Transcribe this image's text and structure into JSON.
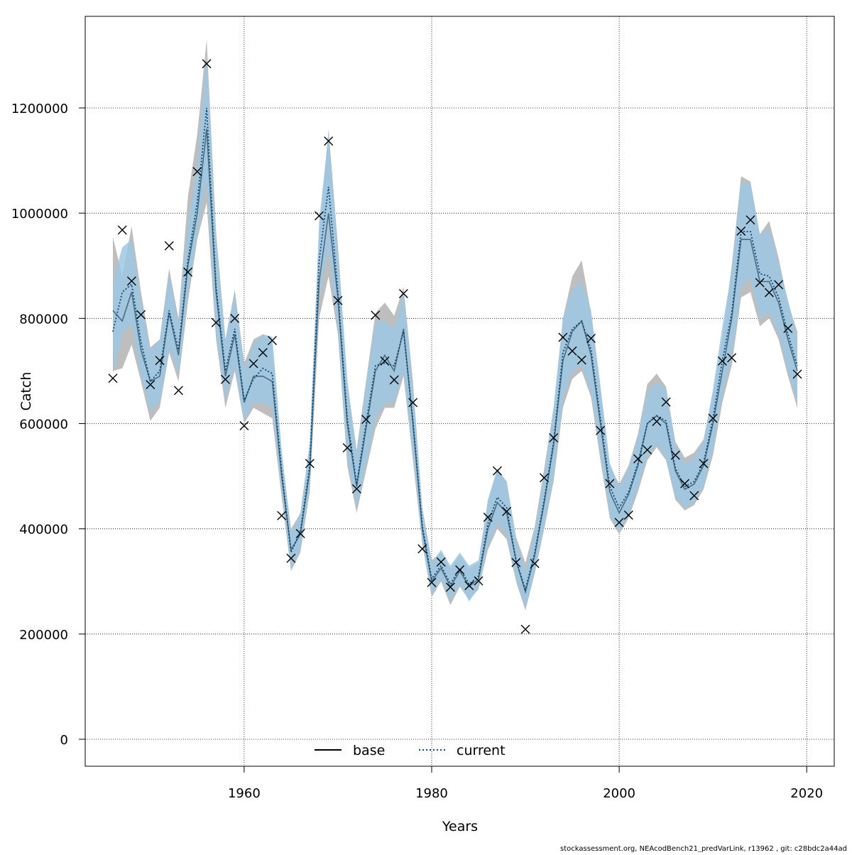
{
  "chart_data": {
    "type": "line",
    "xlabel": "Years",
    "ylabel": "Catch",
    "xlim": [
      1946,
      2019
    ],
    "ylim": [
      0,
      1300000
    ],
    "x_ticks": [
      1960,
      1980,
      2000,
      2020
    ],
    "y_ticks": [
      0,
      200000,
      400000,
      600000,
      800000,
      1000000,
      1200000
    ],
    "grid": true,
    "legend_position": "bottom-center",
    "colors": {
      "base_band": "#bebebe",
      "current_band": "#9ec8e4",
      "base_line": "#000000",
      "current_line": "#0b4a7a",
      "observed": "#000000"
    },
    "years": [
      1946,
      1947,
      1948,
      1949,
      1950,
      1951,
      1952,
      1953,
      1954,
      1955,
      1956,
      1957,
      1958,
      1959,
      1960,
      1961,
      1962,
      1963,
      1964,
      1965,
      1966,
      1967,
      1968,
      1969,
      1970,
      1971,
      1972,
      1973,
      1974,
      1975,
      1976,
      1977,
      1978,
      1979,
      1980,
      1981,
      1982,
      1983,
      1984,
      1985,
      1986,
      1987,
      1988,
      1989,
      1990,
      1991,
      1992,
      1993,
      1994,
      1995,
      1996,
      1997,
      1998,
      1999,
      2000,
      2001,
      2002,
      2003,
      2004,
      2005,
      2006,
      2007,
      2008,
      2009,
      2010,
      2011,
      2012,
      2013,
      2014,
      2015,
      2016,
      2017,
      2018,
      2019
    ],
    "series": [
      {
        "name": "base",
        "style": "solid",
        "values": [
          815000,
          795000,
          850000,
          740000,
          680000,
          690000,
          810000,
          730000,
          900000,
          1000000,
          1160000,
          850000,
          690000,
          770000,
          640000,
          690000,
          690000,
          680000,
          500000,
          360000,
          390000,
          510000,
          870000,
          1000000,
          840000,
          600000,
          480000,
          590000,
          700000,
          730000,
          700000,
          780000,
          600000,
          400000,
          300000,
          325000,
          290000,
          320000,
          290000,
          305000,
          400000,
          450000,
          430000,
          340000,
          280000,
          350000,
          450000,
          560000,
          720000,
          775000,
          795000,
          730000,
          600000,
          470000,
          430000,
          465000,
          520000,
          600000,
          615000,
          600000,
          510000,
          475000,
          485000,
          520000,
          600000,
          700000,
          800000,
          950000,
          950000,
          870000,
          870000,
          830000,
          760000,
          700000
        ],
        "lower": [
          700000,
          705000,
          750000,
          680000,
          605000,
          630000,
          735000,
          680000,
          830000,
          950000,
          1020000,
          760000,
          630000,
          700000,
          600000,
          630000,
          620000,
          610000,
          460000,
          320000,
          355000,
          470000,
          800000,
          880000,
          770000,
          520000,
          430000,
          510000,
          590000,
          630000,
          630000,
          690000,
          530000,
          370000,
          270000,
          300000,
          255000,
          290000,
          265000,
          285000,
          360000,
          400000,
          380000,
          300000,
          245000,
          315000,
          400000,
          490000,
          630000,
          685000,
          700000,
          650000,
          530000,
          420000,
          390000,
          420000,
          470000,
          530000,
          555000,
          530000,
          455000,
          435000,
          445000,
          475000,
          540000,
          640000,
          710000,
          840000,
          850000,
          785000,
          800000,
          760000,
          690000,
          630000
        ],
        "upper": [
          955000,
          880000,
          975000,
          850000,
          745000,
          760000,
          895000,
          800000,
          1030000,
          1150000,
          1330000,
          965000,
          760000,
          855000,
          715000,
          760000,
          770000,
          755000,
          545000,
          400000,
          430000,
          560000,
          960000,
          1160000,
          940000,
          680000,
          550000,
          680000,
          810000,
          830000,
          805000,
          860000,
          680000,
          440000,
          340000,
          355000,
          325000,
          350000,
          325000,
          335000,
          455000,
          510000,
          490000,
          385000,
          335000,
          405000,
          515000,
          630000,
          800000,
          880000,
          910000,
          810000,
          670000,
          520000,
          485000,
          520000,
          580000,
          675000,
          695000,
          670000,
          565000,
          535000,
          545000,
          570000,
          660000,
          760000,
          900000,
          1070000,
          1060000,
          960000,
          985000,
          915000,
          830000,
          775000
        ]
      },
      {
        "name": "current",
        "style": "dotted",
        "values": [
          775000,
          850000,
          865000,
          755000,
          680000,
          700000,
          815000,
          740000,
          910000,
          1020000,
          1200000,
          860000,
          700000,
          780000,
          645000,
          685000,
          705000,
          695000,
          510000,
          355000,
          395000,
          520000,
          910000,
          1050000,
          850000,
          610000,
          485000,
          600000,
          710000,
          715000,
          710000,
          775000,
          605000,
          405000,
          305000,
          330000,
          295000,
          325000,
          295000,
          310000,
          410000,
          460000,
          440000,
          340000,
          285000,
          355000,
          455000,
          565000,
          735000,
          780000,
          795000,
          740000,
          610000,
          480000,
          440000,
          470000,
          525000,
          600000,
          615000,
          605000,
          515000,
          480000,
          490000,
          525000,
          610000,
          720000,
          810000,
          965000,
          965000,
          885000,
          880000,
          840000,
          770000,
          710000
        ],
        "lower": [
          695000,
          770000,
          790000,
          690000,
          625000,
          640000,
          745000,
          695000,
          850000,
          960000,
          1060000,
          775000,
          645000,
          710000,
          605000,
          640000,
          640000,
          630000,
          470000,
          325000,
          360000,
          480000,
          840000,
          930000,
          780000,
          535000,
          440000,
          525000,
          610000,
          640000,
          640000,
          700000,
          545000,
          375000,
          275000,
          305000,
          262000,
          295000,
          262000,
          288000,
          368000,
          410000,
          390000,
          305000,
          250000,
          320000,
          405000,
          500000,
          650000,
          700000,
          710000,
          660000,
          545000,
          425000,
          395000,
          425000,
          480000,
          540000,
          560000,
          535000,
          460000,
          440000,
          450000,
          480000,
          550000,
          655000,
          725000,
          860000,
          875000,
          800000,
          810000,
          770000,
          700000,
          640000
        ],
        "upper": [
          870000,
          935000,
          950000,
          835000,
          740000,
          760000,
          885000,
          790000,
          985000,
          1090000,
          1300000,
          950000,
          755000,
          850000,
          705000,
          750000,
          770000,
          765000,
          550000,
          390000,
          430000,
          565000,
          985000,
          1150000,
          925000,
          685000,
          535000,
          675000,
          795000,
          795000,
          780000,
          850000,
          665000,
          440000,
          335000,
          360000,
          330000,
          355000,
          330000,
          340000,
          455000,
          515000,
          490000,
          380000,
          320000,
          395000,
          505000,
          630000,
          800000,
          855000,
          870000,
          815000,
          670000,
          525000,
          480000,
          515000,
          575000,
          660000,
          680000,
          665000,
          560000,
          525000,
          535000,
          565000,
          665000,
          785000,
          890000,
          1060000,
          1055000,
          960000,
          970000,
          905000,
          835000,
          765000
        ]
      }
    ],
    "observed": [
      {
        "x": 1946,
        "y": 686000
      },
      {
        "x": 1947,
        "y": 968000
      },
      {
        "x": 1948,
        "y": 871000
      },
      {
        "x": 1949,
        "y": 807000
      },
      {
        "x": 1950,
        "y": 674000
      },
      {
        "x": 1951,
        "y": 720000
      },
      {
        "x": 1952,
        "y": 938000
      },
      {
        "x": 1953,
        "y": 663000
      },
      {
        "x": 1954,
        "y": 888000
      },
      {
        "x": 1955,
        "y": 1079000
      },
      {
        "x": 1956,
        "y": 1284000
      },
      {
        "x": 1957,
        "y": 792000
      },
      {
        "x": 1958,
        "y": 684000
      },
      {
        "x": 1959,
        "y": 800000
      },
      {
        "x": 1960,
        "y": 596000
      },
      {
        "x": 1961,
        "y": 714000
      },
      {
        "x": 1962,
        "y": 735000
      },
      {
        "x": 1963,
        "y": 758000
      },
      {
        "x": 1964,
        "y": 425000
      },
      {
        "x": 1965,
        "y": 344000
      },
      {
        "x": 1966,
        "y": 391000
      },
      {
        "x": 1967,
        "y": 524000
      },
      {
        "x": 1968,
        "y": 995000
      },
      {
        "x": 1969,
        "y": 1137000
      },
      {
        "x": 1970,
        "y": 834000
      },
      {
        "x": 1971,
        "y": 554000
      },
      {
        "x": 1972,
        "y": 476000
      },
      {
        "x": 1973,
        "y": 608000
      },
      {
        "x": 1974,
        "y": 806000
      },
      {
        "x": 1975,
        "y": 719000
      },
      {
        "x": 1976,
        "y": 683000
      },
      {
        "x": 1977,
        "y": 847000
      },
      {
        "x": 1978,
        "y": 640000
      },
      {
        "x": 1979,
        "y": 362000
      },
      {
        "x": 1980,
        "y": 298000
      },
      {
        "x": 1981,
        "y": 337000
      },
      {
        "x": 1982,
        "y": 289000
      },
      {
        "x": 1983,
        "y": 322000
      },
      {
        "x": 1984,
        "y": 292000
      },
      {
        "x": 1985,
        "y": 301000
      },
      {
        "x": 1986,
        "y": 422000
      },
      {
        "x": 1987,
        "y": 510000
      },
      {
        "x": 1988,
        "y": 433000
      },
      {
        "x": 1989,
        "y": 336000
      },
      {
        "x": 1990,
        "y": 209000
      },
      {
        "x": 1991,
        "y": 334000
      },
      {
        "x": 1992,
        "y": 497000
      },
      {
        "x": 1993,
        "y": 573000
      },
      {
        "x": 1994,
        "y": 764000
      },
      {
        "x": 1995,
        "y": 738000
      },
      {
        "x": 1996,
        "y": 721000
      },
      {
        "x": 1997,
        "y": 762000
      },
      {
        "x": 1998,
        "y": 587000
      },
      {
        "x": 1999,
        "y": 486000
      },
      {
        "x": 2000,
        "y": 412000
      },
      {
        "x": 2001,
        "y": 426000
      },
      {
        "x": 2002,
        "y": 533000
      },
      {
        "x": 2003,
        "y": 550000
      },
      {
        "x": 2004,
        "y": 604000
      },
      {
        "x": 2005,
        "y": 641000
      },
      {
        "x": 2006,
        "y": 540000
      },
      {
        "x": 2007,
        "y": 486000
      },
      {
        "x": 2008,
        "y": 463000
      },
      {
        "x": 2009,
        "y": 524000
      },
      {
        "x": 2010,
        "y": 610000
      },
      {
        "x": 2011,
        "y": 719000
      },
      {
        "x": 2012,
        "y": 725000
      },
      {
        "x": 2013,
        "y": 966000
      },
      {
        "x": 2014,
        "y": 987000
      },
      {
        "x": 2015,
        "y": 868000
      },
      {
        "x": 2016,
        "y": 849000
      },
      {
        "x": 2017,
        "y": 864000
      },
      {
        "x": 2018,
        "y": 781000
      },
      {
        "x": 2019,
        "y": 694000
      }
    ],
    "legend": [
      {
        "label": "base",
        "style": "solid"
      },
      {
        "label": "current",
        "style": "dotted"
      }
    ]
  },
  "footer_text": "stockassessment.org, NEAcodBench21_predVarLink, r13962 , git: c28bdc2a44ad"
}
